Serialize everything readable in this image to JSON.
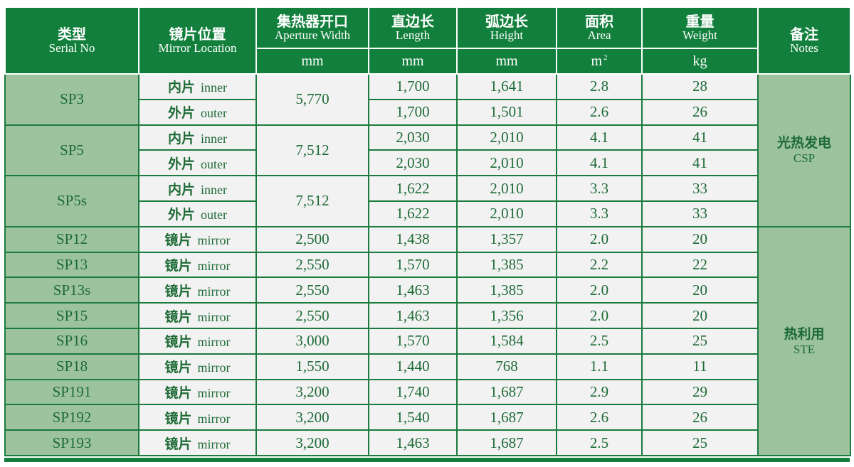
{
  "headers": {
    "serial": {
      "cn": "类型",
      "en": "Serial No"
    },
    "location": {
      "cn": "镜片位置",
      "en": "Mirror Location"
    },
    "aperture": {
      "cn": "集热器开口",
      "en": "Aperture Width",
      "unit": "mm"
    },
    "length": {
      "cn": "直边长",
      "en": "Length",
      "unit": "mm"
    },
    "height": {
      "cn": "弧边长",
      "en": "Height",
      "unit": "mm"
    },
    "area": {
      "cn": "面积",
      "en": "Area",
      "unit": "m",
      "unit_sup": "2"
    },
    "weight": {
      "cn": "重量",
      "en": "Weight",
      "unit": "kg"
    },
    "notes": {
      "cn": "备注",
      "en": "Notes"
    }
  },
  "notes_groups": [
    {
      "cn": "光热发电",
      "en": "CSP"
    },
    {
      "cn": "热利用",
      "en": "STE"
    }
  ],
  "rows": [
    {
      "serial": "SP3",
      "loc_cn": "内片",
      "loc_en": "inner",
      "aperture": "5,770",
      "length": "1,700",
      "height": "1,641",
      "area": "2.8",
      "weight": "28"
    },
    {
      "serial": "",
      "loc_cn": "外片",
      "loc_en": "outer",
      "aperture": "",
      "length": "1,700",
      "height": "1,501",
      "area": "2.6",
      "weight": "26"
    },
    {
      "serial": "SP5",
      "loc_cn": "内片",
      "loc_en": "inner",
      "aperture": "7,512",
      "length": "2,030",
      "height": "2,010",
      "area": "4.1",
      "weight": "41"
    },
    {
      "serial": "",
      "loc_cn": "外片",
      "loc_en": "outer",
      "aperture": "",
      "length": "2,030",
      "height": "2,010",
      "area": "4.1",
      "weight": "41"
    },
    {
      "serial": "SP5s",
      "loc_cn": "内片",
      "loc_en": "inner",
      "aperture": "7,512",
      "length": "1,622",
      "height": "2,010",
      "area": "3.3",
      "weight": "33"
    },
    {
      "serial": "",
      "loc_cn": "外片",
      "loc_en": "outer",
      "aperture": "",
      "length": "1,622",
      "height": "2,010",
      "area": "3.3",
      "weight": "33"
    },
    {
      "serial": "SP12",
      "loc_cn": "镜片",
      "loc_en": "mirror",
      "aperture": "2,500",
      "length": "1,438",
      "height": "1,357",
      "area": "2.0",
      "weight": "20"
    },
    {
      "serial": "SP13",
      "loc_cn": "镜片",
      "loc_en": "mirror",
      "aperture": "2,550",
      "length": "1,570",
      "height": "1,385",
      "area": "2.2",
      "weight": "22"
    },
    {
      "serial": "SP13s",
      "loc_cn": "镜片",
      "loc_en": "mirror",
      "aperture": "2,550",
      "length": "1,463",
      "height": "1,385",
      "area": "2.0",
      "weight": "20"
    },
    {
      "serial": "SP15",
      "loc_cn": "镜片",
      "loc_en": "mirror",
      "aperture": "2,550",
      "length": "1,463",
      "height": "1,356",
      "area": "2.0",
      "weight": "20"
    },
    {
      "serial": "SP16",
      "loc_cn": "镜片",
      "loc_en": "mirror",
      "aperture": "3,000",
      "length": "1,570",
      "height": "1,584",
      "area": "2.5",
      "weight": "25"
    },
    {
      "serial": "SP18",
      "loc_cn": "镜片",
      "loc_en": "mirror",
      "aperture": "1,550",
      "length": "1,440",
      "height": "768",
      "area": "1.1",
      "weight": "11"
    },
    {
      "serial": "SP191",
      "loc_cn": "镜片",
      "loc_en": "mirror",
      "aperture": "3,200",
      "length": "1,740",
      "height": "1,687",
      "area": "2.9",
      "weight": "29"
    },
    {
      "serial": "SP192",
      "loc_cn": "镜片",
      "loc_en": "mirror",
      "aperture": "3,200",
      "length": "1,540",
      "height": "1,687",
      "area": "2.6",
      "weight": "26"
    },
    {
      "serial": "SP193",
      "loc_cn": "镜片",
      "loc_en": "mirror",
      "aperture": "3,200",
      "length": "1,463",
      "height": "1,687",
      "area": "2.5",
      "weight": "25"
    }
  ],
  "colors": {
    "header_green": "#12803c",
    "serial_bg": "#9cc39e",
    "cell_bg": "#f2f2f2",
    "text_green": "#1e6b36"
  }
}
